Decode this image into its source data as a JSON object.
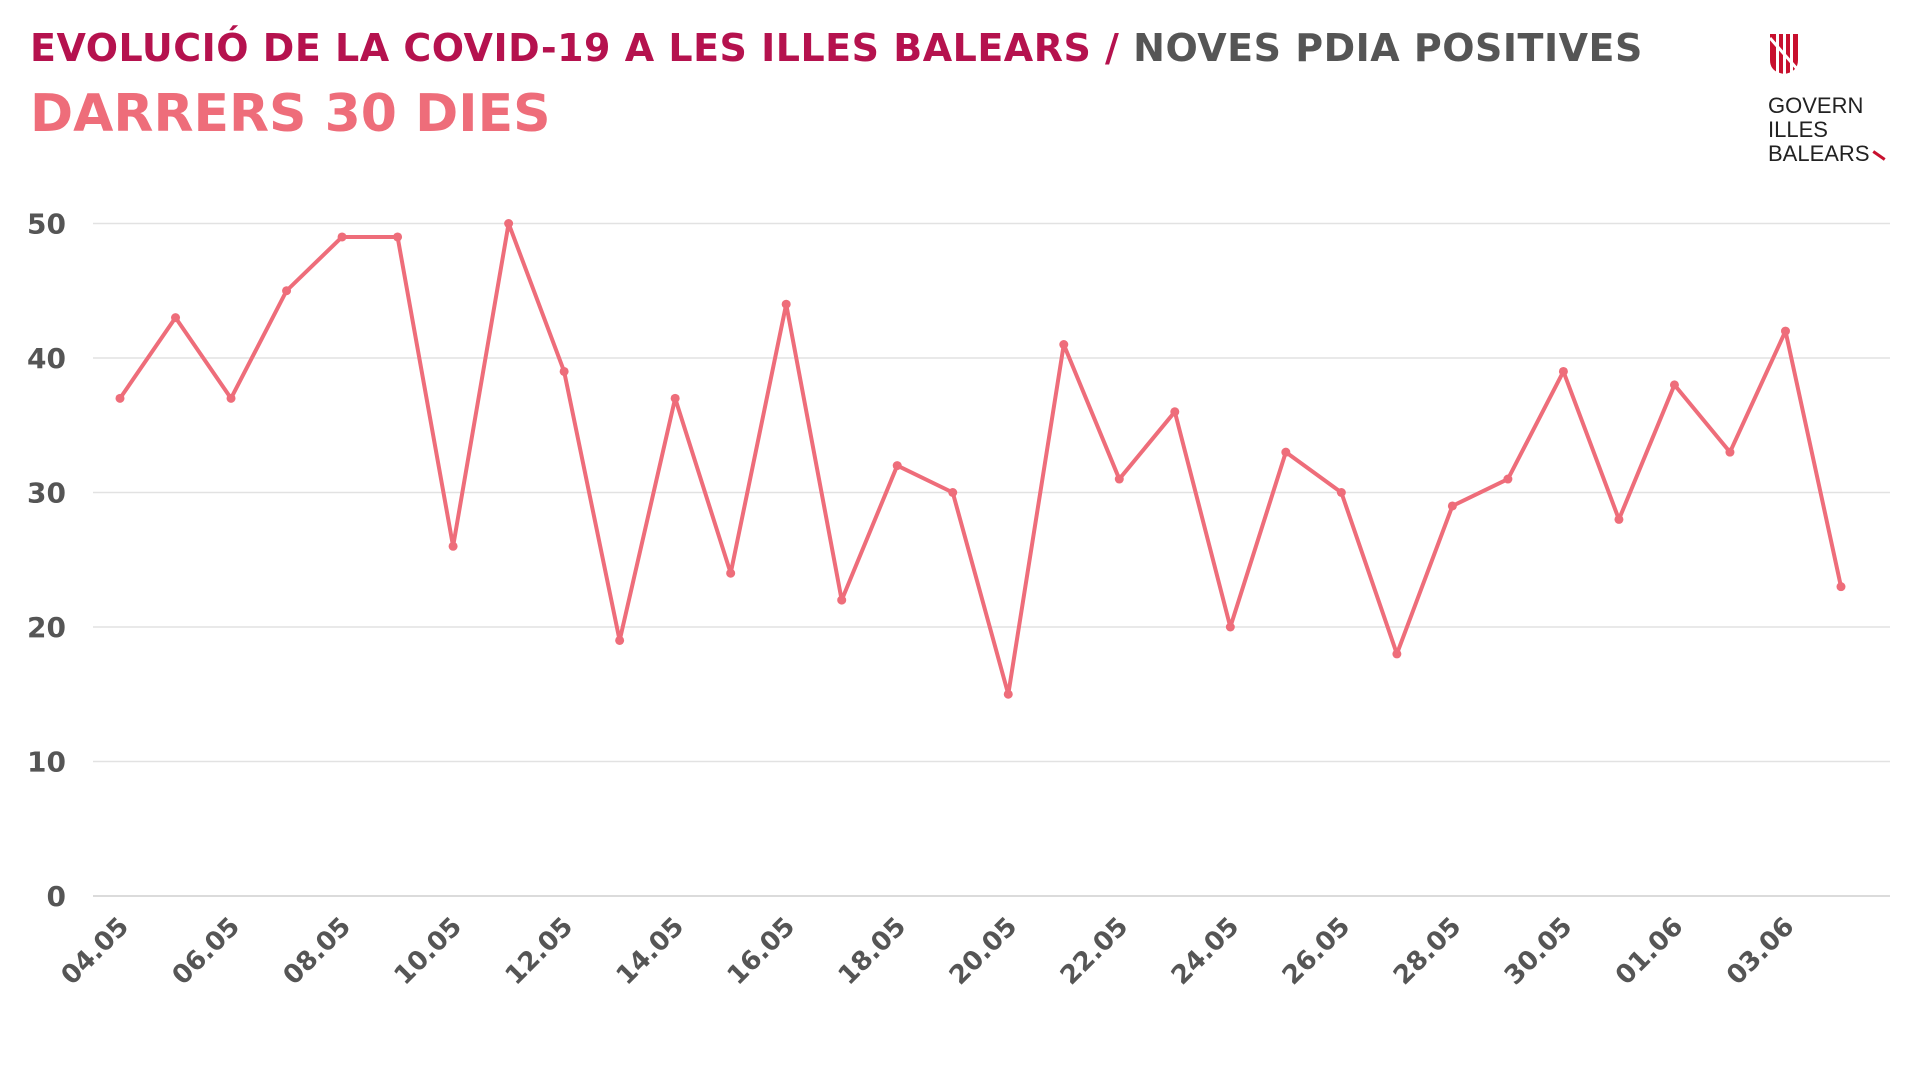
{
  "header": {
    "title_main": "EVOLUCIÓ DE LA COVID-19 A LES ILLES BALEARS",
    "title_sep": " / ",
    "title_secondary": "NOVES PDIA POSITIVES",
    "subtitle": "DARRERS 30 DIES"
  },
  "logo": {
    "line1": "GOVERN",
    "line2": "ILLES",
    "line3": "BALEARS",
    "color": "#c8102e"
  },
  "chart_data": {
    "type": "line",
    "title": "NOVES PDIA POSITIVES",
    "xlabel": "",
    "ylabel": "",
    "ylim": [
      0,
      50
    ],
    "yticks": [
      0,
      10,
      20,
      30,
      40,
      50
    ],
    "grid": true,
    "line_color": "#ee6d7a",
    "x": [
      "04.05",
      "05.05",
      "06.05",
      "07.05",
      "08.05",
      "09.05",
      "10.05",
      "11.05",
      "12.05",
      "13.05",
      "14.05",
      "15.05",
      "16.05",
      "17.05",
      "18.05",
      "19.05",
      "20.05",
      "21.05",
      "22.05",
      "23.05",
      "24.05",
      "25.05",
      "26.05",
      "27.05",
      "28.05",
      "29.05",
      "30.05",
      "31.05",
      "01.06",
      "02.06",
      "03.06",
      "04.06"
    ],
    "xtick_labels": [
      "04.05",
      "06.05",
      "08.05",
      "10.05",
      "12.05",
      "14.05",
      "16.05",
      "18.05",
      "20.05",
      "22.05",
      "24.05",
      "26.05",
      "28.05",
      "30.05",
      "01.06",
      "03.06"
    ],
    "series": [
      {
        "name": "Noves PDIA positives",
        "values": [
          37,
          43,
          37,
          45,
          49,
          49,
          26,
          50,
          39,
          19,
          37,
          24,
          44,
          22,
          32,
          30,
          15,
          41,
          31,
          36,
          20,
          33,
          30,
          18,
          29,
          31,
          39,
          28,
          38,
          33,
          42,
          23
        ]
      }
    ]
  }
}
